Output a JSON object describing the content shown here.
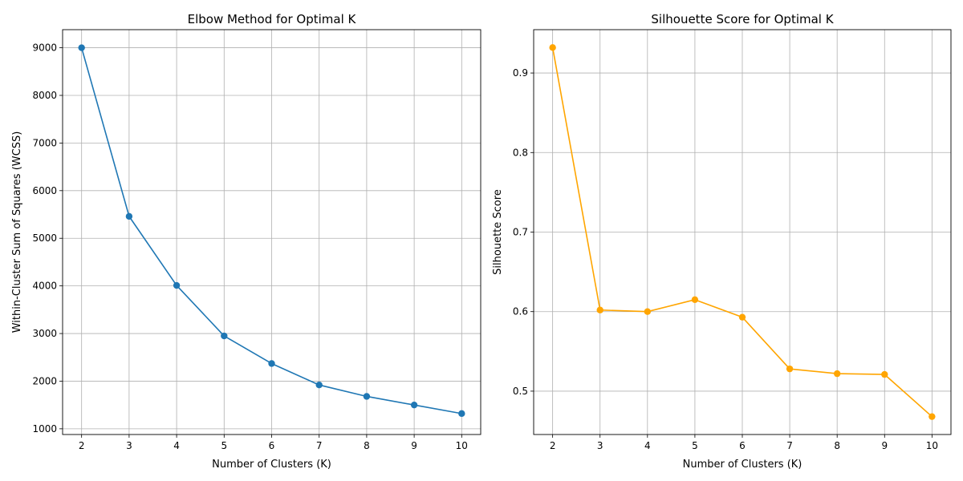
{
  "chart_data": [
    {
      "type": "line",
      "title": "Elbow Method for Optimal K",
      "xlabel": "Number of Clusters (K)",
      "ylabel": "Within-Cluster Sum of Squares (WCSS)",
      "x": [
        2,
        3,
        4,
        5,
        6,
        7,
        8,
        9,
        10
      ],
      "xticks": [
        "2",
        "3",
        "4",
        "5",
        "6",
        "7",
        "8",
        "9",
        "10"
      ],
      "yticks": [
        "1000",
        "2000",
        "3000",
        "4000",
        "5000",
        "6000",
        "7000",
        "8000",
        "9000"
      ],
      "xlim": [
        1.6,
        10.4
      ],
      "ylim": [
        880,
        9380
      ],
      "grid": true,
      "marker": "circle",
      "series": [
        {
          "values": [
            9000,
            5460,
            4010,
            2950,
            2370,
            1920,
            1680,
            1500,
            1320
          ],
          "color": "#1f77b4"
        }
      ]
    },
    {
      "type": "line",
      "title": "Silhouette Score for Optimal K",
      "xlabel": "Number of Clusters (K)",
      "ylabel": "Silhouette Score",
      "x": [
        2,
        3,
        4,
        5,
        6,
        7,
        8,
        9,
        10
      ],
      "xticks": [
        "2",
        "3",
        "4",
        "5",
        "6",
        "7",
        "8",
        "9",
        "10"
      ],
      "yticks": [
        "0.5",
        "0.6",
        "0.7",
        "0.8",
        "0.9"
      ],
      "xlim": [
        1.6,
        10.4
      ],
      "ylim": [
        0.4455,
        0.9545
      ],
      "grid": true,
      "marker": "circle",
      "series": [
        {
          "values": [
            0.932,
            0.602,
            0.6,
            0.615,
            0.593,
            0.528,
            0.522,
            0.521,
            0.468
          ],
          "color": "#ffa500"
        }
      ]
    }
  ]
}
